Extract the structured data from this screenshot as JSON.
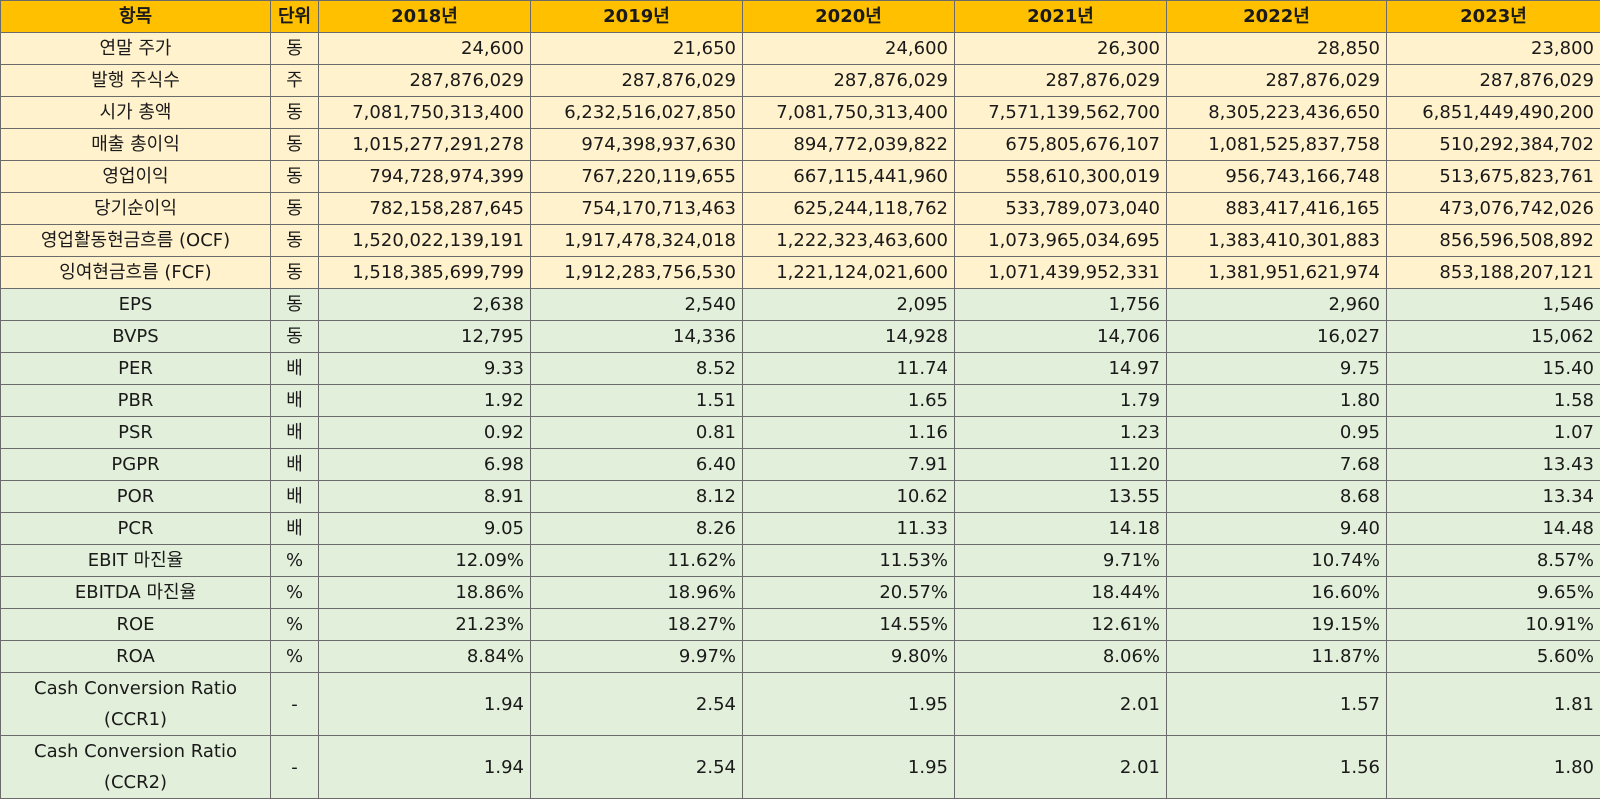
{
  "header": {
    "item": "항목",
    "unit": "단위",
    "years": [
      "2018년",
      "2019년",
      "2020년",
      "2021년",
      "2022년",
      "2023년"
    ]
  },
  "rows": [
    {
      "group": "a",
      "label": "연말 주가",
      "unit": "동",
      "values": [
        "24,600",
        "21,650",
        "24,600",
        "26,300",
        "28,850",
        "23,800"
      ]
    },
    {
      "group": "a",
      "label": "발행 주식수",
      "unit": "주",
      "values": [
        "287,876,029",
        "287,876,029",
        "287,876,029",
        "287,876,029",
        "287,876,029",
        "287,876,029"
      ]
    },
    {
      "group": "a",
      "label": "시가 총액",
      "unit": "동",
      "values": [
        "7,081,750,313,400",
        "6,232,516,027,850",
        "7,081,750,313,400",
        "7,571,139,562,700",
        "8,305,223,436,650",
        "6,851,449,490,200"
      ]
    },
    {
      "group": "a",
      "label": "매출 총이익",
      "unit": "동",
      "values": [
        "1,015,277,291,278",
        "974,398,937,630",
        "894,772,039,822",
        "675,805,676,107",
        "1,081,525,837,758",
        "510,292,384,702"
      ]
    },
    {
      "group": "a",
      "label": "영업이익",
      "unit": "동",
      "values": [
        "794,728,974,399",
        "767,220,119,655",
        "667,115,441,960",
        "558,610,300,019",
        "956,743,166,748",
        "513,675,823,761"
      ]
    },
    {
      "group": "a",
      "label": "당기순이익",
      "unit": "동",
      "values": [
        "782,158,287,645",
        "754,170,713,463",
        "625,244,118,762",
        "533,789,073,040",
        "883,417,416,165",
        "473,076,742,026"
      ]
    },
    {
      "group": "a",
      "label": "영업활동현금흐름 (OCF)",
      "unit": "동",
      "values": [
        "1,520,022,139,191",
        "1,917,478,324,018",
        "1,222,323,463,600",
        "1,073,965,034,695",
        "1,383,410,301,883",
        "856,596,508,892"
      ]
    },
    {
      "group": "a",
      "label": "잉여현금흐름 (FCF)",
      "unit": "동",
      "values": [
        "1,518,385,699,799",
        "1,912,283,756,530",
        "1,221,124,021,600",
        "1,071,439,952,331",
        "1,381,951,621,974",
        "853,188,207,121"
      ]
    },
    {
      "group": "b",
      "label": "EPS",
      "unit": "동",
      "values": [
        "2,638",
        "2,540",
        "2,095",
        "1,756",
        "2,960",
        "1,546"
      ]
    },
    {
      "group": "b",
      "label": "BVPS",
      "unit": "동",
      "values": [
        "12,795",
        "14,336",
        "14,928",
        "14,706",
        "16,027",
        "15,062"
      ]
    },
    {
      "group": "b",
      "label": "PER",
      "unit": "배",
      "values": [
        "9.33",
        "8.52",
        "11.74",
        "14.97",
        "9.75",
        "15.40"
      ]
    },
    {
      "group": "b",
      "label": "PBR",
      "unit": "배",
      "values": [
        "1.92",
        "1.51",
        "1.65",
        "1.79",
        "1.80",
        "1.58"
      ]
    },
    {
      "group": "b",
      "label": "PSR",
      "unit": "배",
      "values": [
        "0.92",
        "0.81",
        "1.16",
        "1.23",
        "0.95",
        "1.07"
      ]
    },
    {
      "group": "b",
      "label": "PGPR",
      "unit": "배",
      "values": [
        "6.98",
        "6.40",
        "7.91",
        "11.20",
        "7.68",
        "13.43"
      ]
    },
    {
      "group": "b",
      "label": "POR",
      "unit": "배",
      "values": [
        "8.91",
        "8.12",
        "10.62",
        "13.55",
        "8.68",
        "13.34"
      ]
    },
    {
      "group": "b",
      "label": "PCR",
      "unit": "배",
      "values": [
        "9.05",
        "8.26",
        "11.33",
        "14.18",
        "9.40",
        "14.48"
      ]
    },
    {
      "group": "b",
      "label": "EBIT 마진율",
      "unit": "%",
      "values": [
        "12.09%",
        "11.62%",
        "11.53%",
        "9.71%",
        "10.74%",
        "8.57%"
      ]
    },
    {
      "group": "b",
      "label": "EBITDA 마진율",
      "unit": "%",
      "values": [
        "18.86%",
        "18.96%",
        "20.57%",
        "18.44%",
        "16.60%",
        "9.65%"
      ]
    },
    {
      "group": "b",
      "label": "ROE",
      "unit": "%",
      "values": [
        "21.23%",
        "18.27%",
        "14.55%",
        "12.61%",
        "19.15%",
        "10.91%"
      ]
    },
    {
      "group": "b",
      "label": "ROA",
      "unit": "%",
      "values": [
        "8.84%",
        "9.97%",
        "9.80%",
        "8.06%",
        "11.87%",
        "5.60%"
      ]
    },
    {
      "group": "b",
      "label": "Cash Conversion Ratio",
      "label2": "(CCR1)",
      "unit": "-",
      "values": [
        "1.94",
        "2.54",
        "1.95",
        "2.01",
        "1.57",
        "1.81"
      ]
    },
    {
      "group": "b",
      "label": "Cash Conversion Ratio",
      "label2": "(CCR2)",
      "unit": "-",
      "values": [
        "1.94",
        "2.54",
        "1.95",
        "2.01",
        "1.56",
        "1.80"
      ]
    }
  ],
  "colors": {
    "header_bg": "#ffc000",
    "group_a_bg": "#fff2cc",
    "group_b_bg": "#e2efda",
    "border": "#6b6b6b"
  }
}
